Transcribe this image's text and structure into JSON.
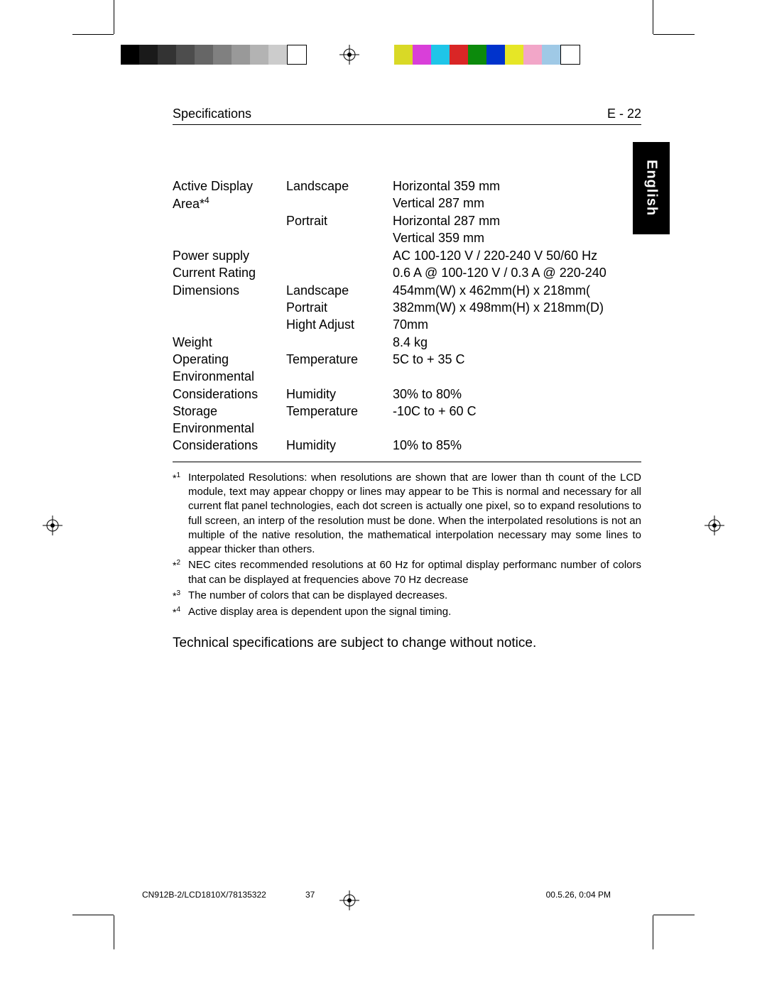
{
  "header": {
    "title": "Specifications",
    "page": "E - 22"
  },
  "lang_tab": "English",
  "gray_strip_colors": [
    "#000000",
    "#1a1a1a",
    "#333333",
    "#4d4d4d",
    "#666666",
    "#808080",
    "#999999",
    "#b3b3b3",
    "#cccccc",
    "#ffffff"
  ],
  "color_strip_colors": [
    "#d9d926",
    "#d93fd9",
    "#1fc5e8",
    "#d92626",
    "#0c8a0c",
    "#0033cc",
    "#e6e626",
    "#f2a6c8",
    "#9fc9e6",
    "#ffffff"
  ],
  "spec_rows": [
    {
      "c1_lines": [
        "Active Display",
        "Area*4"
      ],
      "c2_lines": [
        "Landscape",
        "",
        "Portrait"
      ],
      "c3_lines": [
        "Horizontal 359 mm",
        "Vertical     287 mm",
        "Horizontal 287 mm",
        "Vertical     359 mm"
      ]
    },
    {
      "c1_lines": [
        "Power supply"
      ],
      "c2_lines": [
        ""
      ],
      "c3_lines": [
        "AC 100-120 V / 220-240 V 50/60 Hz"
      ]
    },
    {
      "c1_lines": [
        "Current Rating",
        "Dimensions"
      ],
      "c2_lines": [
        "",
        "Landscape",
        "Portrait",
        "Hight Adjust"
      ],
      "c3_lines": [
        "0.6 A @ 100-120 V / 0.3 A @ 220-240",
        "454mm(W) x 462mm(H) x 218mm(",
        "382mm(W) x 498mm(H) x 218mm(D)",
        "70mm"
      ]
    },
    {
      "c1_lines": [
        "Weight"
      ],
      "c2_lines": [
        ""
      ],
      "c3_lines": [
        "8.4 kg"
      ]
    },
    {
      "c1_lines": [
        "Operating",
        "Environmental",
        "Considerations"
      ],
      "c2_lines": [
        "Temperature",
        "",
        "Humidity"
      ],
      "c3_lines": [
        "5C to + 35 C",
        "",
        "30% to 80%"
      ]
    },
    {
      "c1_lines": [
        "Storage",
        "Environmental",
        "Considerations"
      ],
      "c2_lines": [
        "Temperature",
        "",
        "Humidity"
      ],
      "c3_lines": [
        "-10C to + 60 C",
        "",
        "10% to 85%"
      ]
    }
  ],
  "footnotes": [
    {
      "num": "1",
      "text": "Interpolated Resolutions: when resolutions are shown that are lower than th count of the LCD module, text may appear choppy or lines may appear to be This is normal and necessary for all current flat panel technologies, each dot screen is actually one pixel, so to expand resolutions to full screen, an interp of the resolution must be done. When the interpolated resolutions is not an multiple of the native resolution, the mathematical interpolation necessary may some lines to appear thicker than others."
    },
    {
      "num": "2",
      "text": "NEC cites recommended resolutions at 60 Hz for optimal display performanc number of colors that can be displayed at frequencies above 70 Hz decrease"
    },
    {
      "num": "3",
      "text": "The number of colors that can be displayed decreases."
    },
    {
      "num": "4",
      "text": "Active display area is dependent upon the signal timing."
    }
  ],
  "notice": "Technical specifications are subject to change without notice.",
  "footer": {
    "left": "CN912B-2/LCD1810X/78135322",
    "mid": "37",
    "right": "00.5.26, 0:04 PM"
  }
}
